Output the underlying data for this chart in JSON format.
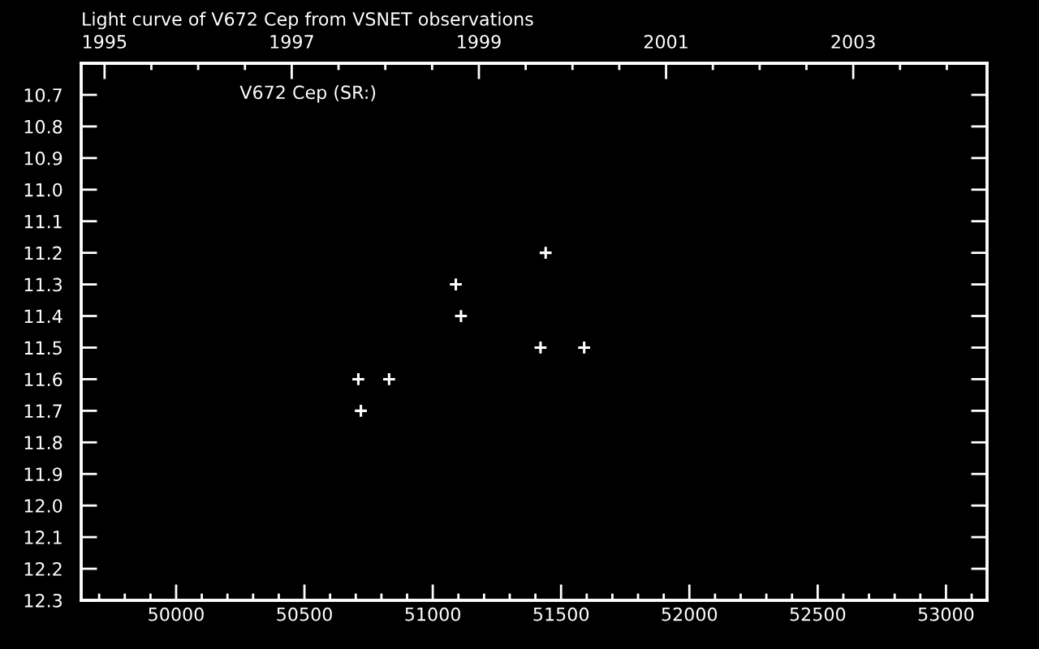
{
  "chart_data": {
    "type": "scatter",
    "title": "Light curve of V672 Cep from VSNET observations",
    "annotations": [
      "V672 Cep (SR:)"
    ],
    "x": [
      50710,
      50720,
      50830,
      51090,
      51110,
      51420,
      51440,
      51590
    ],
    "series": [
      {
        "color": "#ffffff",
        "values": [
          11.6,
          11.7,
          11.6,
          11.3,
          11.4,
          11.5,
          11.2,
          11.5
        ]
      }
    ],
    "marker": "cross",
    "xlim": [
      49630,
      53160
    ],
    "xticks": [
      {
        "value": 49700,
        "label": null
      },
      {
        "value": 49800,
        "label": null
      },
      {
        "value": 49900,
        "label": null
      },
      50000,
      {
        "value": 50100,
        "label": null
      },
      {
        "value": 50200,
        "label": null
      },
      {
        "value": 50300,
        "label": null
      },
      {
        "value": 50400,
        "label": null
      },
      50500,
      {
        "value": 50600,
        "label": null
      },
      {
        "value": 50700,
        "label": null
      },
      {
        "value": 50800,
        "label": null
      },
      {
        "value": 50900,
        "label": null
      },
      51000,
      {
        "value": 51100,
        "label": null
      },
      {
        "value": 51200,
        "label": null
      },
      {
        "value": 51300,
        "label": null
      },
      {
        "value": 51400,
        "label": null
      },
      51500,
      {
        "value": 51600,
        "label": null
      },
      {
        "value": 51700,
        "label": null
      },
      {
        "value": 51800,
        "label": null
      },
      {
        "value": 51900,
        "label": null
      },
      52000,
      {
        "value": 52100,
        "label": null
      },
      {
        "value": 52200,
        "label": null
      },
      {
        "value": 52300,
        "label": null
      },
      {
        "value": 52400,
        "label": null
      },
      52500,
      {
        "value": 52600,
        "label": null
      },
      {
        "value": 52700,
        "label": null
      },
      {
        "value": 52800,
        "label": null
      },
      {
        "value": 52900,
        "label": null
      },
      53000,
      {
        "value": 53100,
        "label": null
      }
    ],
    "x2lim": [
      1994.75,
      2004.43
    ],
    "x2ticks": [
      1995,
      {
        "value": 1995.5,
        "label": null
      },
      {
        "value": 1996,
        "label": null
      },
      {
        "value": 1996.5,
        "label": null
      },
      1997,
      {
        "value": 1997.5,
        "label": null
      },
      {
        "value": 1998,
        "label": null
      },
      {
        "value": 1998.5,
        "label": null
      },
      1999,
      {
        "value": 1999.5,
        "label": null
      },
      {
        "value": 2000,
        "label": null
      },
      {
        "value": 2000.5,
        "label": null
      },
      2001,
      {
        "value": 2001.5,
        "label": null
      },
      {
        "value": 2002,
        "label": null
      },
      {
        "value": 2002.5,
        "label": null
      },
      2003,
      {
        "value": 2003.5,
        "label": null
      },
      {
        "value": 2004,
        "label": null
      }
    ],
    "ylim": [
      12.3,
      10.6
    ],
    "yticks": [
      10.7,
      10.8,
      10.9,
      {
        "value": 11.0,
        "label": "11.0"
      },
      11.1,
      11.2,
      11.3,
      11.4,
      11.5,
      11.6,
      11.7,
      11.8,
      11.9,
      {
        "value": 12.0,
        "label": "12.0"
      },
      12.1,
      12.2,
      12.3
    ]
  }
}
